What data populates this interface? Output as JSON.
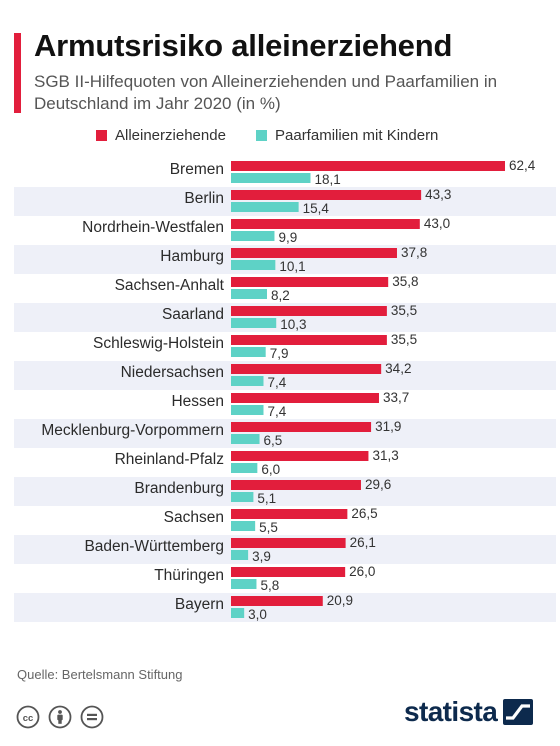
{
  "title": "Armutsrisiko alleinerziehend",
  "subtitle": "SGB II-Hilfequoten von Alleinerziehenden und Paarfamilien in Deutschland im Jahr 2020 (in %)",
  "source": "Quelle: Bertelsmann Stiftung",
  "brand": "statista",
  "colors": {
    "accent": "#e21e3c",
    "series1": "#e21e3c",
    "series2": "#5ed2c6",
    "stripe": "#eef0f8"
  },
  "icons": [
    "cc-icon",
    "attribution-icon",
    "no-derivatives-icon",
    "statista-logo-icon"
  ],
  "chart_data": {
    "type": "bar",
    "orientation": "horizontal",
    "grid": false,
    "legend": "top",
    "categories": [
      "Bremen",
      "Berlin",
      "Nordrhein-Westfalen",
      "Hamburg",
      "Sachsen-Anhalt",
      "Saarland",
      "Schleswig-Holstein",
      "Niedersachsen",
      "Hessen",
      "Mecklenburg-Vorpommern",
      "Rheinland-Pfalz",
      "Brandenburg",
      "Sachsen",
      "Baden-Württemberg",
      "Thüringen",
      "Bayern"
    ],
    "series": [
      {
        "name": "Alleinerziehende",
        "values": [
          62.4,
          43.3,
          43.0,
          37.8,
          35.8,
          35.5,
          35.5,
          34.2,
          33.7,
          31.9,
          31.3,
          29.6,
          26.5,
          26.1,
          26.0,
          20.9
        ],
        "labels": [
          "62,4",
          "43,3",
          "43,0",
          "37,8",
          "35,8",
          "35,5",
          "35,5",
          "34,2",
          "33,7",
          "31,9",
          "31,3",
          "29,6",
          "26,5",
          "26,1",
          "26,0",
          "20,9"
        ]
      },
      {
        "name": "Paarfamilien mit Kindern",
        "values": [
          18.1,
          15.4,
          9.9,
          10.1,
          8.2,
          10.3,
          7.9,
          7.4,
          7.4,
          6.5,
          6.0,
          5.1,
          5.5,
          3.9,
          5.8,
          3.0
        ],
        "labels": [
          "18,1",
          "15,4",
          "9,9",
          "10,1",
          "8,2",
          "10,3",
          "7,9",
          "7,4",
          "7,4",
          "6,5",
          "6,0",
          "5,1",
          "5,5",
          "3,9",
          "5,8",
          "3,0"
        ]
      }
    ],
    "xlim": [
      0,
      62.4
    ]
  }
}
